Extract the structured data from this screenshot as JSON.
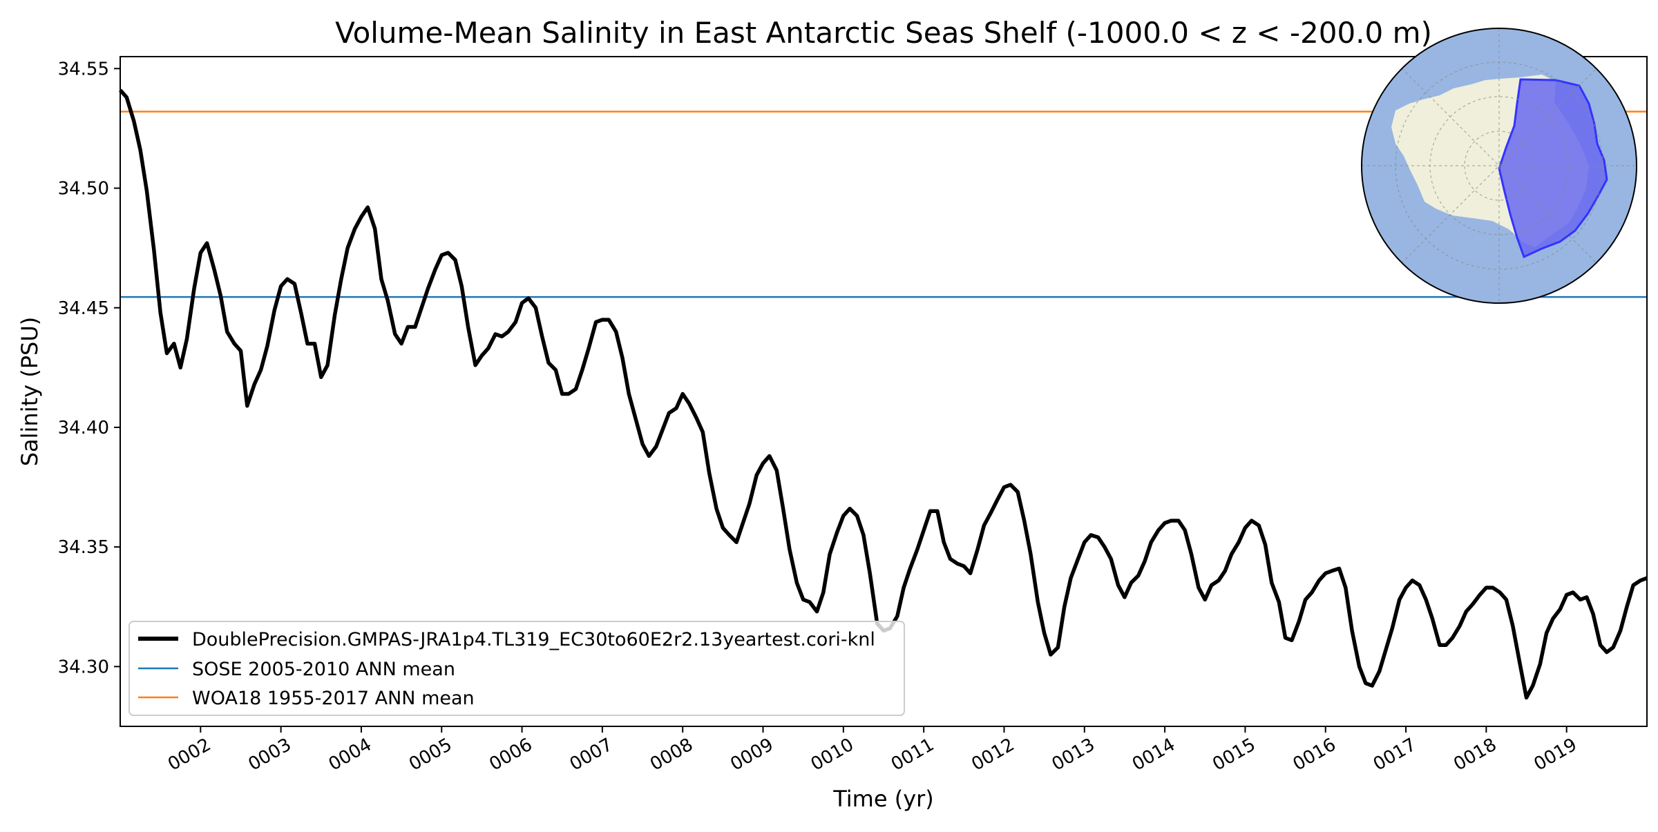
{
  "chart_data": {
    "type": "line",
    "title": "Volume-Mean Salinity in East Antarctic Seas Shelf (-1000.0 < z < -200.0 m)",
    "xlabel": "Time (yr)",
    "ylabel": "Salinity (PSU)",
    "xlim": [
      1.0,
      20.0
    ],
    "ylim": [
      34.275,
      34.555
    ],
    "grid": false,
    "legend_location": "lower-left",
    "x_ticks": [
      {
        "value": 2,
        "label": "0002"
      },
      {
        "value": 3,
        "label": "0003"
      },
      {
        "value": 4,
        "label": "0004"
      },
      {
        "value": 5,
        "label": "0005"
      },
      {
        "value": 6,
        "label": "0006"
      },
      {
        "value": 7,
        "label": "0007"
      },
      {
        "value": 8,
        "label": "0008"
      },
      {
        "value": 9,
        "label": "0009"
      },
      {
        "value": 10,
        "label": "0010"
      },
      {
        "value": 11,
        "label": "0011"
      },
      {
        "value": 12,
        "label": "0012"
      },
      {
        "value": 13,
        "label": "0013"
      },
      {
        "value": 14,
        "label": "0014"
      },
      {
        "value": 15,
        "label": "0015"
      },
      {
        "value": 16,
        "label": "0016"
      },
      {
        "value": 17,
        "label": "0017"
      },
      {
        "value": 18,
        "label": "0018"
      },
      {
        "value": 19,
        "label": "0019"
      }
    ],
    "y_ticks": [
      {
        "value": 34.3,
        "label": "34.30"
      },
      {
        "value": 34.35,
        "label": "34.35"
      },
      {
        "value": 34.4,
        "label": "34.40"
      },
      {
        "value": 34.45,
        "label": "34.45"
      },
      {
        "value": 34.5,
        "label": "34.50"
      },
      {
        "value": 34.55,
        "label": "34.55"
      }
    ],
    "series": [
      {
        "name": "DoublePrecision.GMPAS-JRA1p4.TL319_EC30to60E2r2.13yeartest.cori-knl",
        "color": "#000000",
        "kind": "line",
        "points": [
          [
            1.0,
            34.541
          ],
          [
            1.08,
            34.538
          ],
          [
            1.17,
            34.528
          ],
          [
            1.25,
            34.516
          ],
          [
            1.33,
            34.499
          ],
          [
            1.42,
            34.474
          ],
          [
            1.5,
            34.448
          ],
          [
            1.58,
            34.431
          ],
          [
            1.67,
            34.435
          ],
          [
            1.75,
            34.425
          ],
          [
            1.83,
            34.437
          ],
          [
            1.92,
            34.458
          ],
          [
            2.0,
            34.473
          ],
          [
            2.08,
            34.477
          ],
          [
            2.17,
            34.466
          ],
          [
            2.25,
            34.455
          ],
          [
            2.33,
            34.44
          ],
          [
            2.42,
            34.435
          ],
          [
            2.5,
            34.432
          ],
          [
            2.58,
            34.409
          ],
          [
            2.67,
            34.418
          ],
          [
            2.75,
            34.424
          ],
          [
            2.83,
            34.434
          ],
          [
            2.92,
            34.449
          ],
          [
            3.0,
            34.459
          ],
          [
            3.08,
            34.462
          ],
          [
            3.17,
            34.46
          ],
          [
            3.25,
            34.448
          ],
          [
            3.33,
            34.435
          ],
          [
            3.42,
            34.435
          ],
          [
            3.5,
            34.421
          ],
          [
            3.58,
            34.426
          ],
          [
            3.67,
            34.447
          ],
          [
            3.75,
            34.462
          ],
          [
            3.83,
            34.475
          ],
          [
            3.92,
            34.483
          ],
          [
            4.0,
            34.488
          ],
          [
            4.08,
            34.492
          ],
          [
            4.17,
            34.483
          ],
          [
            4.25,
            34.462
          ],
          [
            4.33,
            34.453
          ],
          [
            4.42,
            34.439
          ],
          [
            4.5,
            34.435
          ],
          [
            4.58,
            34.442
          ],
          [
            4.67,
            34.442
          ],
          [
            4.75,
            34.45
          ],
          [
            4.83,
            34.458
          ],
          [
            4.92,
            34.466
          ],
          [
            5.0,
            34.472
          ],
          [
            5.08,
            34.473
          ],
          [
            5.17,
            34.47
          ],
          [
            5.25,
            34.459
          ],
          [
            5.33,
            34.442
          ],
          [
            5.42,
            34.426
          ],
          [
            5.5,
            34.43
          ],
          [
            5.58,
            34.433
          ],
          [
            5.67,
            34.439
          ],
          [
            5.75,
            34.438
          ],
          [
            5.83,
            34.44
          ],
          [
            5.92,
            34.444
          ],
          [
            6.0,
            34.452
          ],
          [
            6.08,
            34.454
          ],
          [
            6.17,
            34.45
          ],
          [
            6.25,
            34.438
          ],
          [
            6.33,
            34.427
          ],
          [
            6.42,
            34.424
          ],
          [
            6.5,
            34.414
          ],
          [
            6.58,
            34.414
          ],
          [
            6.67,
            34.416
          ],
          [
            6.75,
            34.424
          ],
          [
            6.83,
            34.433
          ],
          [
            6.92,
            34.444
          ],
          [
            7.0,
            34.445
          ],
          [
            7.08,
            34.445
          ],
          [
            7.17,
            34.44
          ],
          [
            7.25,
            34.429
          ],
          [
            7.33,
            34.414
          ],
          [
            7.42,
            34.403
          ],
          [
            7.5,
            34.393
          ],
          [
            7.58,
            34.388
          ],
          [
            7.67,
            34.392
          ],
          [
            7.75,
            34.399
          ],
          [
            7.83,
            34.406
          ],
          [
            7.92,
            34.408
          ],
          [
            8.0,
            34.414
          ],
          [
            8.08,
            34.41
          ],
          [
            8.17,
            34.404
          ],
          [
            8.25,
            34.398
          ],
          [
            8.33,
            34.381
          ],
          [
            8.42,
            34.366
          ],
          [
            8.5,
            34.358
          ],
          [
            8.58,
            34.355
          ],
          [
            8.67,
            34.352
          ],
          [
            8.75,
            34.36
          ],
          [
            8.83,
            34.368
          ],
          [
            8.92,
            34.38
          ],
          [
            9.0,
            34.385
          ],
          [
            9.08,
            34.388
          ],
          [
            9.17,
            34.382
          ],
          [
            9.25,
            34.366
          ],
          [
            9.33,
            34.349
          ],
          [
            9.42,
            34.335
          ],
          [
            9.5,
            34.328
          ],
          [
            9.58,
            34.327
          ],
          [
            9.67,
            34.323
          ],
          [
            9.75,
            34.331
          ],
          [
            9.83,
            34.347
          ],
          [
            9.92,
            34.356
          ],
          [
            10.0,
            34.363
          ],
          [
            10.08,
            34.366
          ],
          [
            10.17,
            34.363
          ],
          [
            10.25,
            34.355
          ],
          [
            10.33,
            34.339
          ],
          [
            10.42,
            34.318
          ],
          [
            10.5,
            34.315
          ],
          [
            10.58,
            34.316
          ],
          [
            10.67,
            34.321
          ],
          [
            10.75,
            34.333
          ],
          [
            10.83,
            34.341
          ],
          [
            10.92,
            34.349
          ],
          [
            11.0,
            34.357
          ],
          [
            11.08,
            34.365
          ],
          [
            11.17,
            34.365
          ],
          [
            11.25,
            34.352
          ],
          [
            11.33,
            34.345
          ],
          [
            11.42,
            34.343
          ],
          [
            11.5,
            34.342
          ],
          [
            11.58,
            34.339
          ],
          [
            11.67,
            34.349
          ],
          [
            11.75,
            34.359
          ],
          [
            11.83,
            34.364
          ],
          [
            11.92,
            34.37
          ],
          [
            12.0,
            34.375
          ],
          [
            12.08,
            34.376
          ],
          [
            12.17,
            34.373
          ],
          [
            12.25,
            34.361
          ],
          [
            12.33,
            34.347
          ],
          [
            12.42,
            34.327
          ],
          [
            12.5,
            34.314
          ],
          [
            12.58,
            34.305
          ],
          [
            12.67,
            34.308
          ],
          [
            12.75,
            34.325
          ],
          [
            12.83,
            34.337
          ],
          [
            12.92,
            34.345
          ],
          [
            13.0,
            34.352
          ],
          [
            13.08,
            34.355
          ],
          [
            13.17,
            34.354
          ],
          [
            13.25,
            34.35
          ],
          [
            13.33,
            34.345
          ],
          [
            13.42,
            34.334
          ],
          [
            13.5,
            34.329
          ],
          [
            13.58,
            34.335
          ],
          [
            13.67,
            34.338
          ],
          [
            13.75,
            34.344
          ],
          [
            13.83,
            34.352
          ],
          [
            13.92,
            34.357
          ],
          [
            14.0,
            34.36
          ],
          [
            14.08,
            34.361
          ],
          [
            14.17,
            34.361
          ],
          [
            14.25,
            34.357
          ],
          [
            14.33,
            34.347
          ],
          [
            14.42,
            34.333
          ],
          [
            14.5,
            34.328
          ],
          [
            14.58,
            34.334
          ],
          [
            14.67,
            34.336
          ],
          [
            14.75,
            34.34
          ],
          [
            14.83,
            34.347
          ],
          [
            14.92,
            34.352
          ],
          [
            15.0,
            34.358
          ],
          [
            15.08,
            34.361
          ],
          [
            15.17,
            34.359
          ],
          [
            15.25,
            34.351
          ],
          [
            15.33,
            34.335
          ],
          [
            15.42,
            34.327
          ],
          [
            15.5,
            34.312
          ],
          [
            15.58,
            34.311
          ],
          [
            15.67,
            34.319
          ],
          [
            15.75,
            34.328
          ],
          [
            15.83,
            34.331
          ],
          [
            15.92,
            34.336
          ],
          [
            16.0,
            34.339
          ],
          [
            16.08,
            34.34
          ],
          [
            16.17,
            34.341
          ],
          [
            16.25,
            34.333
          ],
          [
            16.33,
            34.315
          ],
          [
            16.42,
            34.3
          ],
          [
            16.5,
            34.293
          ],
          [
            16.58,
            34.292
          ],
          [
            16.67,
            34.298
          ],
          [
            16.75,
            34.307
          ],
          [
            16.83,
            34.316
          ],
          [
            16.92,
            34.328
          ],
          [
            17.0,
            34.333
          ],
          [
            17.08,
            34.336
          ],
          [
            17.17,
            34.334
          ],
          [
            17.25,
            34.328
          ],
          [
            17.33,
            34.32
          ],
          [
            17.42,
            34.309
          ],
          [
            17.5,
            34.309
          ],
          [
            17.58,
            34.312
          ],
          [
            17.67,
            34.317
          ],
          [
            17.75,
            34.323
          ],
          [
            17.83,
            34.326
          ],
          [
            17.92,
            34.33
          ],
          [
            18.0,
            34.333
          ],
          [
            18.08,
            34.333
          ],
          [
            18.17,
            34.331
          ],
          [
            18.25,
            34.328
          ],
          [
            18.33,
            34.317
          ],
          [
            18.42,
            34.301
          ],
          [
            18.5,
            34.287
          ],
          [
            18.58,
            34.292
          ],
          [
            18.67,
            34.301
          ],
          [
            18.75,
            34.314
          ],
          [
            18.83,
            34.32
          ],
          [
            18.92,
            34.324
          ],
          [
            19.0,
            34.33
          ],
          [
            19.08,
            34.331
          ],
          [
            19.17,
            34.328
          ],
          [
            19.25,
            34.329
          ],
          [
            19.33,
            34.322
          ],
          [
            19.42,
            34.309
          ],
          [
            19.5,
            34.306
          ],
          [
            19.58,
            34.308
          ],
          [
            19.67,
            34.315
          ],
          [
            19.75,
            34.325
          ],
          [
            19.83,
            34.334
          ],
          [
            19.92,
            34.336
          ],
          [
            20.0,
            34.337
          ]
        ]
      },
      {
        "name": "SOSE 2005-2010 ANN mean",
        "color": "#1f77b4",
        "kind": "hline",
        "value": 34.4545
      },
      {
        "name": "WOA18 1955-2017 ANN mean",
        "color": "#ff7f0e",
        "kind": "hline",
        "value": 34.532
      }
    ],
    "inset_map": {
      "name": "south-polar-region-map",
      "ocean_color": "#98b6e1",
      "land_color": "#efefdb",
      "region_color": "#6a6aee",
      "region_edge_color": "#3333ff"
    }
  }
}
